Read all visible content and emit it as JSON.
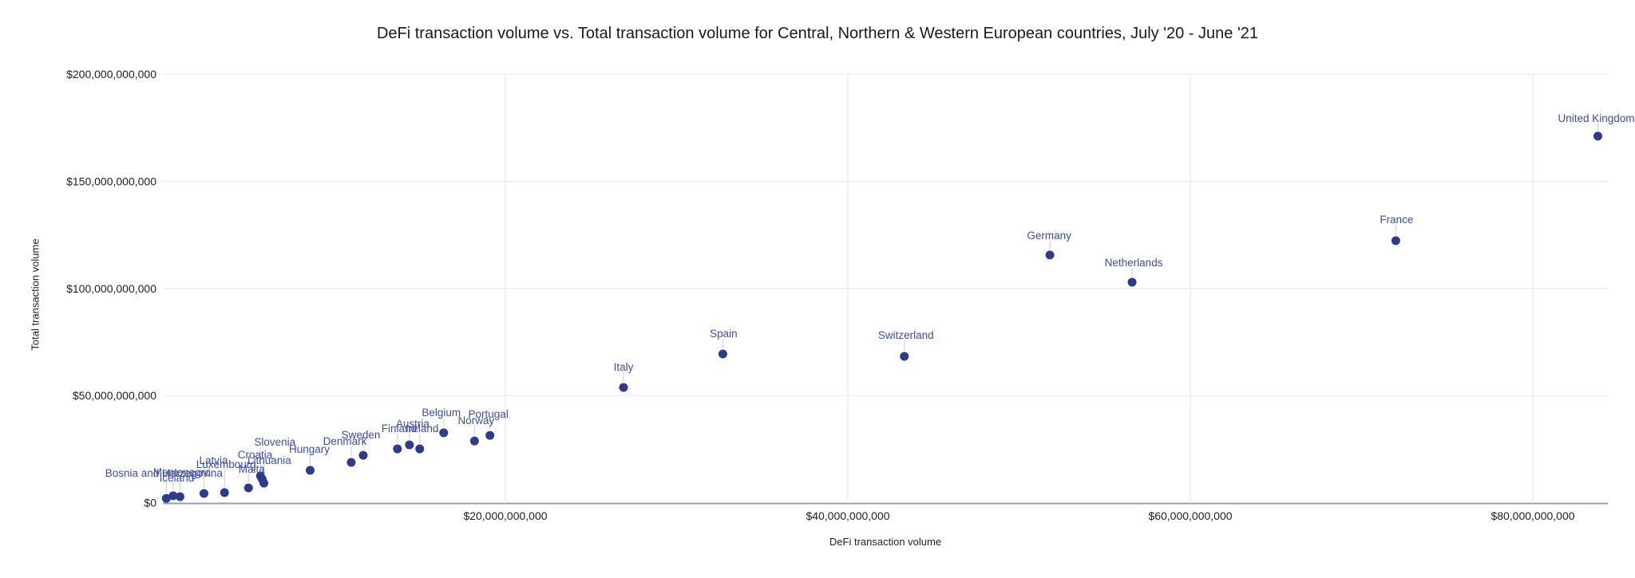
{
  "title": "DeFi transaction volume vs. Total transaction volume for Central, Northern & Western European countries, July '20 - June '21",
  "chart_data": {
    "type": "scatter",
    "title": "DeFi transaction volume vs. Total transaction volume for Central, Northern & Western European countries, July '20 - June '21",
    "xlabel": "DeFi transaction volume",
    "ylabel": "Total transaction volume",
    "grid": true,
    "legend_position": "none",
    "x_tick_labels": [
      "$20,000,000,000",
      "$40,000,000,000",
      "$60,000,000,000",
      "$80,000,000,000"
    ],
    "x_tick_values_usd_billions": [
      20,
      40,
      60,
      80
    ],
    "y_tick_labels": [
      "$0",
      "$50,000,000,000",
      "$100,000,000,000",
      "$150,000,000,000",
      "$200,000,000,000"
    ],
    "y_tick_values_usd_billions": [
      0,
      50,
      100,
      150,
      200
    ],
    "x_range_usd_billions": [
      0,
      86
    ],
    "y_range_usd_billions": [
      0,
      200
    ],
    "units": "USD",
    "colors": {
      "point": "#2c3b8d",
      "annotation": "#3c4da3",
      "gridline": "#e6e6e6",
      "axis_line": "#9e9e9e",
      "leader_line": "#c9cdd3",
      "tick_text": "#202124",
      "title_text": "#1a1a1a"
    },
    "points": [
      {
        "country": "United Kingdom",
        "defi_volume_usd_billions": 83.8,
        "total_volume_usd_billions": 171.1
      },
      {
        "country": "France",
        "defi_volume_usd_billions": 72.0,
        "total_volume_usd_billions": 122.3
      },
      {
        "country": "Netherlands",
        "defi_volume_usd_billions": 56.6,
        "total_volume_usd_billions": 102.9
      },
      {
        "country": "Germany",
        "defi_volume_usd_billions": 51.8,
        "total_volume_usd_billions": 115.6
      },
      {
        "country": "Switzerland",
        "defi_volume_usd_billions": 43.3,
        "total_volume_usd_billions": 68.3
      },
      {
        "country": "Spain",
        "defi_volume_usd_billions": 32.7,
        "total_volume_usd_billions": 69.4
      },
      {
        "country": "Italy",
        "defi_volume_usd_billions": 26.9,
        "total_volume_usd_billions": 53.8
      },
      {
        "country": "Portugal",
        "defi_volume_usd_billions": 19.1,
        "total_volume_usd_billions": 31.4
      },
      {
        "country": "Norway",
        "defi_volume_usd_billions": 18.2,
        "total_volume_usd_billions": 28.8
      },
      {
        "country": "Belgium",
        "defi_volume_usd_billions": 16.4,
        "total_volume_usd_billions": 32.6
      },
      {
        "country": "Ireland",
        "defi_volume_usd_billions": 15.0,
        "total_volume_usd_billions": 25.1
      },
      {
        "country": "Austria",
        "defi_volume_usd_billions": 14.4,
        "total_volume_usd_billions": 27.0
      },
      {
        "country": "Finland",
        "defi_volume_usd_billions": 13.7,
        "total_volume_usd_billions": 25.1
      },
      {
        "country": "Sweden",
        "defi_volume_usd_billions": 11.7,
        "total_volume_usd_billions": 22.1
      },
      {
        "country": "Denmark",
        "defi_volume_usd_billions": 11.0,
        "total_volume_usd_billions": 18.8
      },
      {
        "country": "Hungary",
        "defi_volume_usd_billions": 8.6,
        "total_volume_usd_billions": 15.1
      },
      {
        "country": "Croatia",
        "defi_volume_usd_billions": 5.9,
        "total_volume_usd_billions": 9.1
      },
      {
        "country": "Lithuania",
        "defi_volume_usd_billions": 5.8,
        "total_volume_usd_billions": 11.0
      },
      {
        "country": "Slovenia",
        "defi_volume_usd_billions": 5.7,
        "total_volume_usd_billions": 12.5
      },
      {
        "country": "Malta",
        "defi_volume_usd_billions": 5.0,
        "total_volume_usd_billions": 6.9
      },
      {
        "country": "Luxembourg",
        "defi_volume_usd_billions": 3.6,
        "total_volume_usd_billions": 4.7
      },
      {
        "country": "Latvia",
        "defi_volume_usd_billions": 2.4,
        "total_volume_usd_billions": 4.3
      },
      {
        "country": "Iceland",
        "defi_volume_usd_billions": 1.0,
        "total_volume_usd_billions": 2.8
      },
      {
        "country": "Montenegro",
        "defi_volume_usd_billions": 0.6,
        "total_volume_usd_billions": 3.2
      },
      {
        "country": "Bosnia and Herzegovina",
        "defi_volume_usd_billions": 0.2,
        "total_volume_usd_billions": 2.0
      }
    ]
  }
}
